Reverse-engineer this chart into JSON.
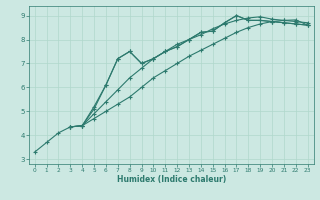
{
  "xlabel": "Humidex (Indice chaleur)",
  "bg_color": "#cce8e2",
  "line_color": "#2d7a6e",
  "grid_color": "#b0d8cc",
  "xlim": [
    -0.5,
    23.5
  ],
  "ylim": [
    2.8,
    9.4
  ],
  "yticks": [
    3,
    4,
    5,
    6,
    7,
    8,
    9
  ],
  "xticks": [
    0,
    1,
    2,
    3,
    4,
    5,
    6,
    7,
    8,
    9,
    10,
    11,
    12,
    13,
    14,
    15,
    16,
    17,
    18,
    19,
    20,
    21,
    22,
    23
  ],
  "line1_x": [
    0,
    1,
    2,
    3,
    4,
    5,
    6,
    7,
    8,
    9,
    10,
    11,
    12,
    13,
    14,
    15,
    16,
    17,
    18,
    19,
    20,
    21,
    22,
    23
  ],
  "line1_y": [
    3.3,
    3.7,
    4.1,
    4.35,
    4.4,
    5.2,
    6.1,
    7.2,
    7.5,
    7.0,
    7.2,
    7.5,
    7.7,
    8.0,
    8.3,
    8.35,
    8.7,
    9.0,
    8.8,
    8.8,
    8.75,
    8.7,
    8.65,
    8.6
  ],
  "line2_x": [
    3,
    4,
    5,
    6,
    7,
    8,
    9,
    10,
    11,
    12,
    13,
    14,
    15,
    16,
    17,
    18,
    19,
    20,
    21,
    22,
    23
  ],
  "line2_y": [
    4.35,
    4.4,
    5.1,
    6.1,
    7.2,
    7.5,
    7.0,
    7.2,
    7.5,
    7.7,
    8.0,
    8.3,
    8.35,
    8.7,
    9.0,
    8.8,
    8.8,
    8.75,
    8.7,
    8.65,
    8.6
  ],
  "line3_x": [
    3,
    4,
    5,
    6,
    7,
    8,
    9,
    10,
    11,
    12,
    13,
    14,
    15,
    16,
    17,
    18,
    19,
    20,
    21,
    22,
    23
  ],
  "line3_y": [
    4.35,
    4.4,
    4.9,
    5.4,
    5.9,
    6.4,
    6.8,
    7.2,
    7.5,
    7.8,
    8.0,
    8.2,
    8.45,
    8.65,
    8.8,
    8.9,
    8.95,
    8.85,
    8.8,
    8.75,
    8.7
  ],
  "line4_x": [
    3,
    4,
    5,
    6,
    7,
    8,
    9,
    10,
    11,
    12,
    13,
    14,
    15,
    16,
    17,
    18,
    19,
    20,
    21,
    22,
    23
  ],
  "line4_y": [
    4.35,
    4.4,
    4.7,
    5.0,
    5.3,
    5.6,
    6.0,
    6.4,
    6.7,
    7.0,
    7.3,
    7.55,
    7.8,
    8.05,
    8.3,
    8.5,
    8.65,
    8.75,
    8.8,
    8.82,
    8.6
  ]
}
